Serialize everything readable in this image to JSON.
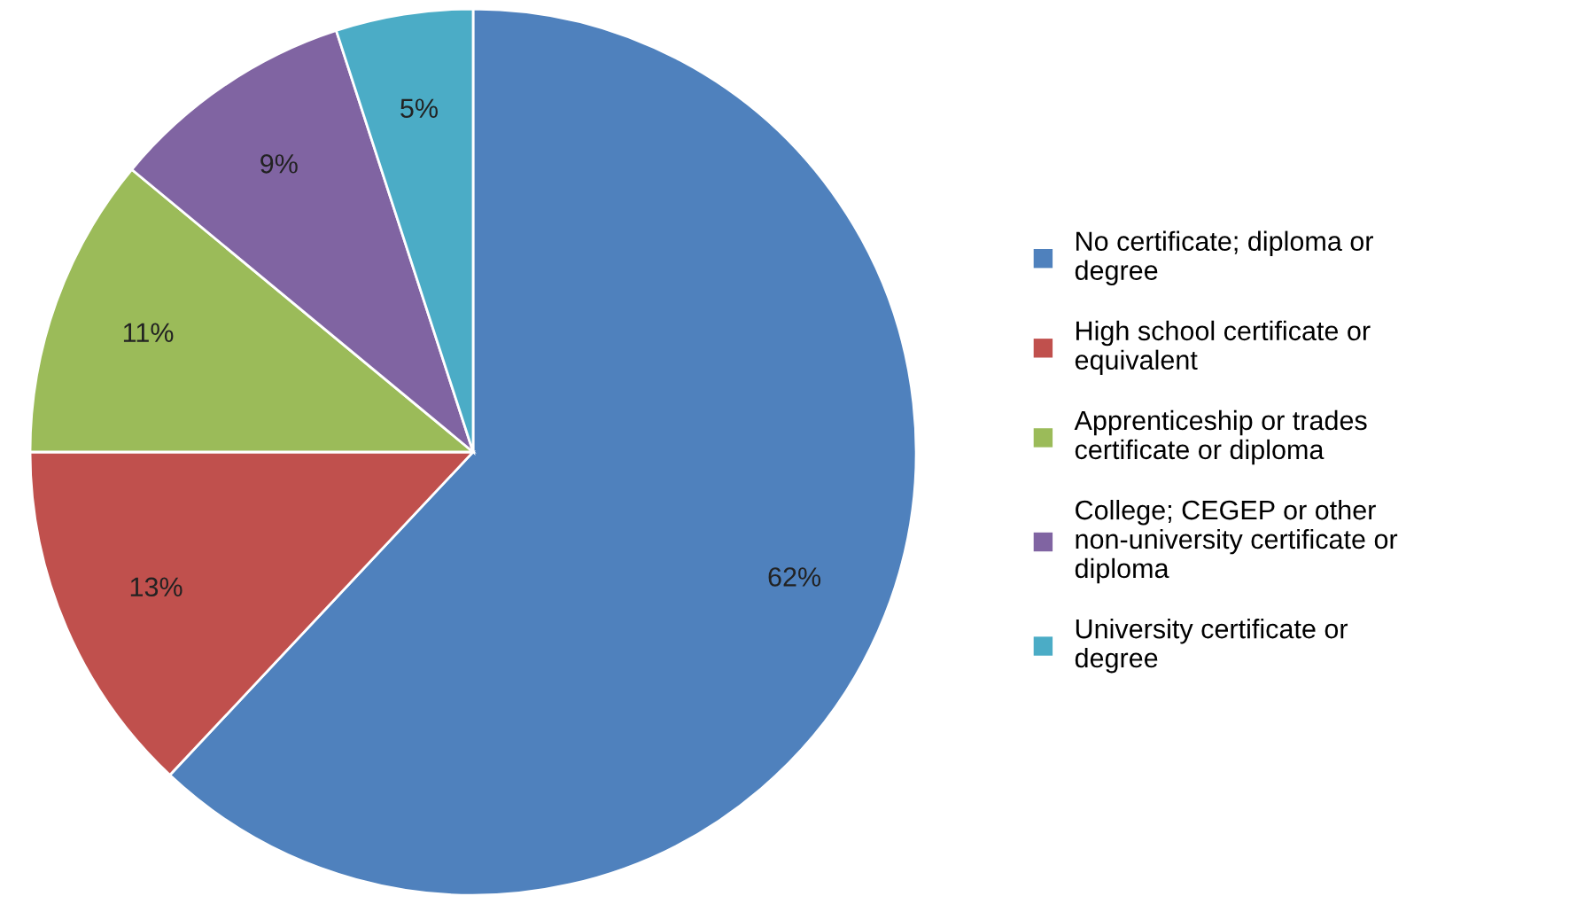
{
  "chart_data": {
    "type": "pie",
    "categories": [
      "No certificate; diploma or degree",
      "High school certificate or equivalent",
      "Apprenticeship or trades certificate or diploma",
      "College; CEGEP or other non-university certificate or diploma",
      "University certificate or degree"
    ],
    "values": [
      62,
      13,
      11,
      9,
      5
    ],
    "colors": [
      "#4f81bd",
      "#c0504d",
      "#9bbb59",
      "#8064a2",
      "#4bacc6"
    ],
    "value_labels": [
      "62%",
      "13%",
      "11%",
      "9%",
      "5%"
    ],
    "legend": "right"
  }
}
